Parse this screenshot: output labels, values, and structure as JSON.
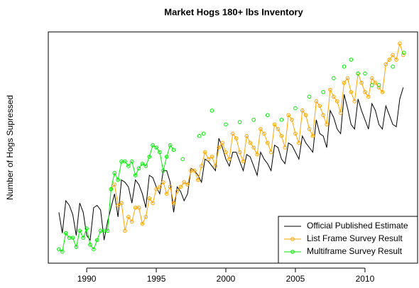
{
  "chart_data": {
    "type": "line",
    "title": "Market Hogs 180+ lbs Inventory",
    "y_label": "Number of Hogs Supressed",
    "xlim": [
      1987.24,
      2013.78
    ],
    "ylim": [
      0,
      100
    ],
    "xticks": [
      1990,
      1995,
      2000,
      2005,
      2010
    ],
    "legend": "bottomright",
    "series": [
      {
        "name": "Official Published Estimate",
        "color": "#000000",
        "marker": false,
        "x": [
          1988,
          1988.25,
          1988.5,
          1988.75,
          1989,
          1989.25,
          1989.5,
          1989.75,
          1990,
          1990.25,
          1990.5,
          1990.75,
          1991,
          1991.25,
          1991.5,
          1991.75,
          1992,
          1992.25,
          1992.5,
          1992.75,
          1993,
          1993.25,
          1993.5,
          1993.75,
          1994,
          1994.25,
          1994.5,
          1994.75,
          1995,
          1995.25,
          1995.5,
          1995.75,
          1996,
          1996.25,
          1996.5,
          1996.75,
          1997,
          1997.25,
          1997.5,
          1997.75,
          1998,
          1998.25,
          1998.5,
          1998.75,
          1999,
          1999.25,
          1999.5,
          1999.75,
          2000,
          2000.25,
          2000.5,
          2000.75,
          2001,
          2001.25,
          2001.5,
          2001.75,
          2002,
          2002.25,
          2002.5,
          2002.75,
          2003,
          2003.25,
          2003.5,
          2003.75,
          2004,
          2004.25,
          2004.5,
          2004.75,
          2005,
          2005.25,
          2005.5,
          2005.75,
          2006,
          2006.25,
          2006.5,
          2006.75,
          2007,
          2007.25,
          2007.5,
          2007.75,
          2008,
          2008.25,
          2008.5,
          2008.75,
          2009,
          2009.25,
          2009.5,
          2009.75,
          2010,
          2010.25,
          2010.5,
          2010.75,
          2011,
          2011.25,
          2011.5,
          2011.75,
          2012,
          2012.25,
          2012.5,
          2012.75
        ],
        "values": [
          22,
          13,
          27,
          25,
          21,
          12,
          26,
          22,
          12,
          10,
          24,
          25,
          23,
          10,
          18,
          24,
          30,
          20,
          36,
          35,
          33,
          26,
          36,
          34,
          30,
          24,
          38,
          37,
          33,
          30,
          40,
          40,
          35,
          22,
          33,
          31,
          27,
          30,
          41,
          40,
          38,
          35,
          45,
          44,
          42,
          40,
          54,
          50,
          45,
          42,
          48,
          48,
          44,
          40,
          47,
          46,
          42,
          38,
          48,
          45,
          43,
          40,
          51,
          50,
          45,
          43,
          52,
          51,
          48,
          45,
          55,
          52,
          50,
          48,
          62,
          56,
          55,
          50,
          66,
          63,
          58,
          56,
          73,
          67,
          60,
          58,
          71,
          66,
          62,
          58,
          69,
          66,
          60,
          58,
          68,
          64,
          60,
          59,
          71,
          76
        ]
      },
      {
        "name": "List Frame Survey Result",
        "color": "#ffa500",
        "marker": true,
        "x": [
          1991.75,
          1992,
          1992.25,
          1992.5,
          1992.75,
          1993,
          1993.25,
          1993.5,
          1993.75,
          1994,
          1994.25,
          1994.5,
          1994.75,
          1995,
          1995.25,
          1995.5,
          1995.75,
          1996,
          1996.25,
          1996.5,
          1996.75,
          1997,
          1997.25,
          1997.5,
          1997.75,
          1998,
          1998.25,
          1998.5,
          1998.75,
          1999,
          1999.25,
          1999.5,
          1999.75,
          2000,
          2000.25,
          2000.5,
          2000.75,
          2001,
          2001.25,
          2001.5,
          2001.75,
          2002,
          2002.25,
          2002.5,
          2002.75,
          2003,
          2003.25,
          2003.5,
          2003.75,
          2004,
          2004.25,
          2004.5,
          2004.75,
          2005,
          2005.25,
          2005.5,
          2005.75,
          2006,
          2006.25,
          2006.5,
          2006.75,
          2007,
          2007.25,
          2007.5,
          2007.75,
          2008,
          2008.25,
          2008.5,
          2008.75,
          2009,
          2009.25,
          2009.5,
          2009.75,
          2010,
          2010.25,
          2010.5,
          2010.75,
          2011,
          2011.25,
          2011.5,
          2011.75,
          2012,
          2012.25,
          2012.5,
          2012.75
        ],
        "values": [
          32,
          34,
          25,
          26,
          14,
          20,
          18,
          24,
          24,
          17,
          20,
          28,
          26,
          32,
          33,
          35,
          30,
          33,
          26,
          31,
          33,
          35,
          34,
          40,
          40,
          36,
          42,
          48,
          45,
          46,
          42,
          50,
          52,
          48,
          45,
          56,
          54,
          48,
          44,
          55,
          52,
          50,
          47,
          58,
          56,
          52,
          48,
          60,
          58,
          55,
          50,
          64,
          62,
          56,
          52,
          66,
          64,
          58,
          55,
          70,
          68,
          64,
          60,
          75,
          72,
          70,
          65,
          78,
          80,
          74,
          70,
          82,
          78,
          74,
          72,
          80,
          78,
          76,
          74,
          86,
          88,
          90,
          88,
          95,
          90
        ]
      },
      {
        "name": "Multiframe Survey Result",
        "color": "#00ee00",
        "marker": true,
        "x": [
          1988,
          1988.25,
          1988.5,
          1988.75,
          1989,
          1989.25,
          1989.5,
          1989.75,
          1990,
          1990.25,
          1990.5,
          1990.75,
          1991,
          1991.25,
          1991.5,
          1991.75,
          1992,
          1992.25,
          1992.5,
          1992.75,
          1993,
          1993.25,
          1993.5,
          1993.75,
          1994,
          1994.25,
          1994.5,
          1994.75,
          1995,
          1995.25,
          1995.5,
          1995.75,
          1996,
          1996.25,
          1996.5,
          1996.9,
          1997.5,
          1998.1,
          1998.25,
          1998.4,
          1998.7,
          1999,
          1999.5,
          2000,
          2000.5,
          2001,
          2001.5,
          2002,
          2002.5,
          2003,
          2003.5,
          2004,
          2004.5,
          2005,
          2005.5,
          2006,
          2006.5,
          2007,
          2007.4,
          2007.75,
          2008.1,
          2008.5,
          2008.75,
          2009,
          2009.25,
          2009.5,
          2009.75,
          2010,
          2010.25,
          2010.5,
          2010.75,
          2011,
          2011.5,
          2012,
          2012.4,
          2012.8
        ],
        "values": [
          6,
          5,
          13,
          11,
          11,
          7,
          14,
          11,
          15,
          8,
          6,
          10,
          14,
          14,
          14,
          32,
          39,
          36,
          44,
          44,
          42,
          44,
          38,
          41,
          43,
          42,
          46,
          51,
          50,
          48,
          40,
          46,
          51,
          49,
          null,
          45,
          null,
          55,
          null,
          56,
          null,
          66,
          null,
          60,
          null,
          61,
          null,
          62,
          null,
          64,
          null,
          62,
          null,
          67,
          null,
          72,
          null,
          74,
          null,
          80,
          null,
          85,
          null,
          88,
          null,
          82,
          null,
          82,
          null,
          77,
          null,
          77,
          null,
          85,
          null,
          91
        ]
      }
    ]
  }
}
